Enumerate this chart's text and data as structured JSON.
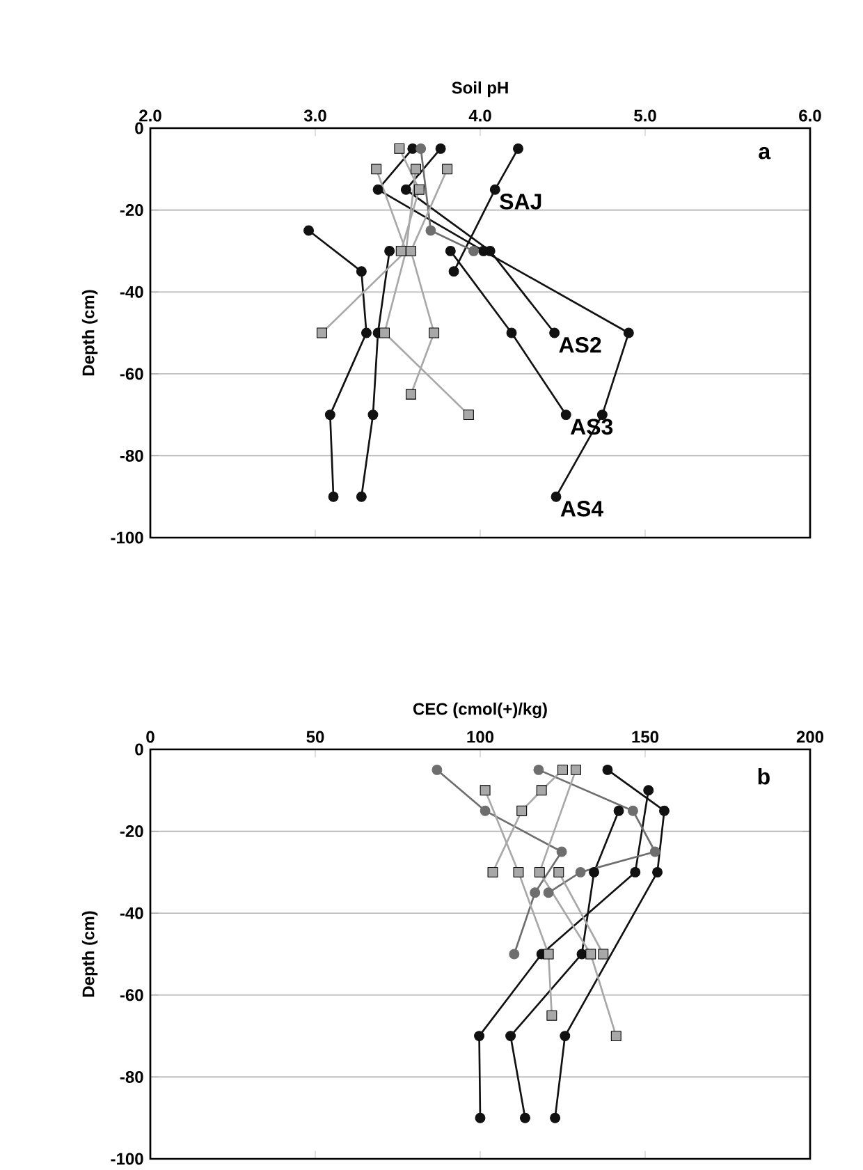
{
  "chart_data": [
    {
      "type": "line",
      "xlabel": "Soil pH",
      "ylabel": "Depth (cm)",
      "xlim": [
        2,
        6
      ],
      "xticks": [
        {
          "value": 2,
          "label": "2.0"
        },
        {
          "value": 3,
          "label": "3.0"
        },
        {
          "value": 4,
          "label": "4.0"
        },
        {
          "value": 5,
          "label": "5.0"
        },
        {
          "value": 6,
          "label": "6.0"
        }
      ],
      "ylim": [
        -100,
        0
      ],
      "yticks": [
        -100,
        -80,
        -60,
        -40,
        -20,
        0
      ],
      "grid": "y",
      "series": [
        {
          "color": "#111111",
          "marker": "circle",
          "x": [
            4.23,
            4.09,
            3.84
          ],
          "values": [
            -5,
            -15,
            -35
          ]
        },
        {
          "color": "#111111",
          "marker": "circle",
          "x": [
            3.76,
            3.55,
            4.06,
            4.45
          ],
          "values": [
            -5,
            -15,
            -30,
            -50
          ]
        },
        {
          "color": "#111111",
          "marker": "circle",
          "x": [
            3.82,
            4.19,
            4.52
          ],
          "values": [
            -30,
            -50,
            -70
          ]
        },
        {
          "color": "#111111",
          "marker": "circle",
          "x": [
            3.59,
            3.38,
            4.02,
            4.9,
            4.74,
            4.46
          ],
          "values": [
            -5,
            -15,
            -30,
            -50,
            -70,
            -90
          ]
        },
        {
          "color": "#111111",
          "marker": "circle",
          "x": [
            2.96,
            3.28,
            3.31,
            3.09,
            3.11
          ],
          "values": [
            -25,
            -35,
            -50,
            -70,
            -90
          ]
        },
        {
          "color": "#111111",
          "marker": "circle",
          "x": [
            3.45,
            3.38,
            3.35,
            3.28
          ],
          "values": [
            -30,
            -50,
            -70,
            -90
          ]
        },
        {
          "color": "#6e6e6e",
          "marker": "circle",
          "x": [
            3.64,
            3.7,
            3.96
          ],
          "values": [
            -5,
            -25,
            -30
          ]
        },
        {
          "color": "#a8a8a8",
          "marker": "square",
          "x": [
            3.37,
            3.55,
            3.04
          ],
          "values": [
            -10,
            -30,
            -50
          ]
        },
        {
          "color": "#a8a8a8",
          "marker": "square",
          "x": [
            3.61,
            3.55,
            3.42,
            3.93
          ],
          "values": [
            -10,
            -30,
            -50,
            -70
          ]
        },
        {
          "color": "#a8a8a8",
          "marker": "square",
          "x": [
            3.8,
            3.58,
            3.72,
            3.58
          ],
          "values": [
            -10,
            -30,
            -50,
            -65
          ]
        },
        {
          "color": "#a8a8a8",
          "marker": "square",
          "x": [
            3.51,
            3.63,
            3.52
          ],
          "values": [
            -5,
            -15,
            -30
          ]
        }
      ],
      "annotations": [
        "a",
        {
          "text": "SAJ",
          "x": 4.09,
          "y": -15
        },
        {
          "text": "AS2",
          "x": 4.45,
          "y": -50
        },
        {
          "text": "AS3",
          "x": 4.52,
          "y": -70
        },
        {
          "text": "AS4",
          "x": 4.46,
          "y": -90
        }
      ]
    },
    {
      "type": "line",
      "xlabel": "CEC (cmol(+)/kg)",
      "ylabel": "Depth (cm)",
      "xlim": [
        0,
        200
      ],
      "xticks": [
        0,
        50,
        100,
        150,
        200
      ],
      "ylim": [
        -100,
        0
      ],
      "yticks": [
        -100,
        -80,
        -60,
        -40,
        -20,
        0
      ],
      "grid": "y",
      "series": [
        {
          "color": "#111111",
          "marker": "circle",
          "x": [
            151,
            147,
            118.6,
            99.7,
            100
          ],
          "values": [
            -10,
            -30,
            -50,
            -70,
            -90
          ]
        },
        {
          "color": "#111111",
          "marker": "circle",
          "x": [
            142,
            134.5,
            130.8,
            109.2,
            113.6
          ],
          "values": [
            -15,
            -30,
            -50,
            -70,
            -90
          ]
        },
        {
          "color": "#111111",
          "marker": "circle",
          "x": [
            138.6,
            155.8,
            153.7,
            125.7,
            122.7
          ],
          "values": [
            -5,
            -15,
            -30,
            -70,
            -90
          ]
        },
        {
          "color": "#6e6e6e",
          "marker": "circle",
          "x": [
            86.9,
            101.5,
            124.7,
            116.6,
            110.3
          ],
          "values": [
            -5,
            -15,
            -25,
            -35,
            -50
          ]
        },
        {
          "color": "#6e6e6e",
          "marker": "circle",
          "x": [
            117.7,
            146.3,
            153,
            130.4,
            120.7
          ],
          "values": [
            -5,
            -15,
            -25,
            -30,
            -35
          ]
        },
        {
          "color": "#a8a8a8",
          "marker": "square",
          "x": [
            125,
            118.6,
            112.6,
            103.8
          ],
          "values": [
            -5,
            -10,
            -15,
            -30
          ]
        },
        {
          "color": "#a8a8a8",
          "marker": "square",
          "x": [
            101.5,
            111.6,
            120.7,
            121.7
          ],
          "values": [
            -10,
            -30,
            -50,
            -65
          ]
        },
        {
          "color": "#a8a8a8",
          "marker": "square",
          "x": [
            129,
            118,
            133.5,
            141.2
          ],
          "values": [
            -5,
            -30,
            -50,
            -70
          ]
        },
        {
          "color": "#a8a8a8",
          "marker": "square",
          "x": [
            123.8,
            137.3
          ],
          "values": [
            -30,
            -50
          ]
        }
      ],
      "annotations": [
        "b"
      ]
    }
  ]
}
